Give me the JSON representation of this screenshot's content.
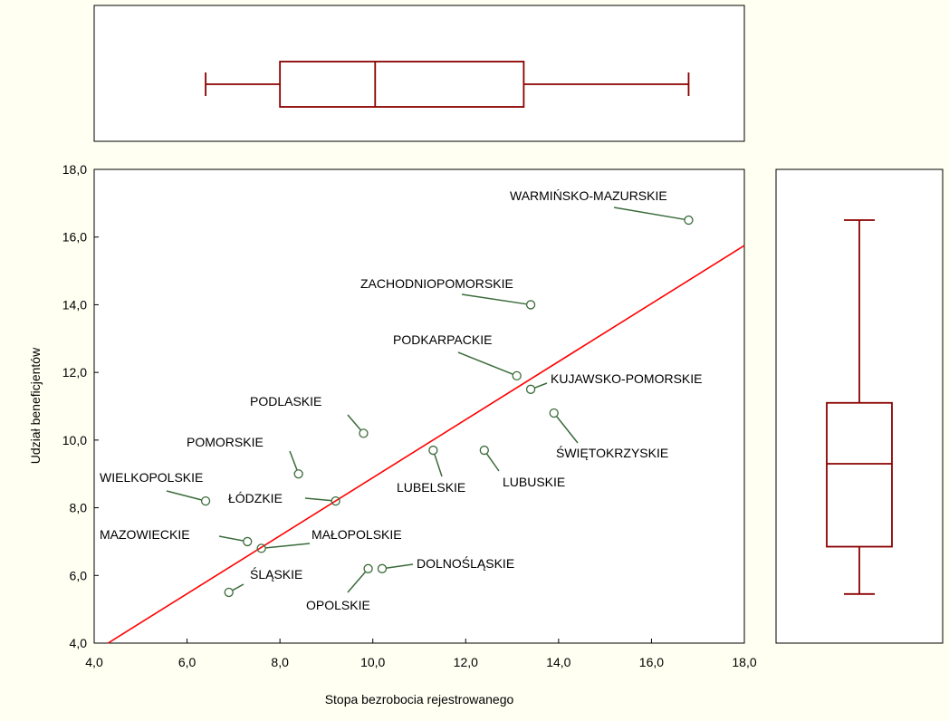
{
  "chart_data": {
    "type": "scatter",
    "background_color": "#fffff2",
    "point_color": "#3a6b3a",
    "regression_color": "#ff0000",
    "boxplot_color": "#8b0000",
    "xlabel": "Stopa bezrobocia rejestrowanego",
    "ylabel": "Udział beneficjentów",
    "xlim": [
      4.0,
      18.0
    ],
    "ylim": [
      4.0,
      18.0
    ],
    "x_ticks": [
      4,
      6,
      8,
      10,
      12,
      14,
      16,
      18
    ],
    "y_ticks": [
      4,
      6,
      8,
      10,
      12,
      14,
      16,
      18
    ],
    "x_tick_labels": [
      "4,0",
      "6,0",
      "8,0",
      "10,0",
      "12,0",
      "14,0",
      "16,0",
      "18,0"
    ],
    "y_tick_labels": [
      "4,0",
      "6,0",
      "8,0",
      "10,0",
      "12,0",
      "14,0",
      "16,0",
      "18,0"
    ],
    "grid": false,
    "points": [
      {
        "label": "WARMIŃSKO-MAZURSKIE",
        "x": 16.8,
        "y": 16.5
      },
      {
        "label": "ZACHODNIOPOMORSKIE",
        "x": 13.4,
        "y": 14.0
      },
      {
        "label": "PODKARPACKIE",
        "x": 13.1,
        "y": 11.9
      },
      {
        "label": "KUJAWSKO-POMORSKIE",
        "x": 13.4,
        "y": 11.5
      },
      {
        "label": "ŚWIĘTOKRZYSKIE",
        "x": 13.9,
        "y": 10.8
      },
      {
        "label": "PODLASKIE",
        "x": 9.8,
        "y": 10.2
      },
      {
        "label": "LUBELSKIE",
        "x": 11.3,
        "y": 9.7
      },
      {
        "label": "LUBUSKIE",
        "x": 12.4,
        "y": 9.7
      },
      {
        "label": "POMORSKIE",
        "x": 8.4,
        "y": 9.0
      },
      {
        "label": "WIELKOPOLSKIE",
        "x": 6.4,
        "y": 8.2
      },
      {
        "label": "ŁÓDZKIE",
        "x": 9.2,
        "y": 8.2
      },
      {
        "label": "MAZOWIECKIE",
        "x": 7.3,
        "y": 7.0
      },
      {
        "label": "MAŁOPOLSKIE",
        "x": 7.6,
        "y": 6.8
      },
      {
        "label": "DOLNOŚLĄSKIE",
        "x": 10.2,
        "y": 6.2
      },
      {
        "label": "OPOLSKIE",
        "x": 9.9,
        "y": 6.2
      },
      {
        "label": "ŚLĄSKIE",
        "x": 6.9,
        "y": 5.5
      }
    ],
    "regression_line": {
      "x": [
        4.3,
        18.0
      ],
      "y": [
        3.9,
        15.75
      ]
    },
    "boxplot_x": {
      "min": 6.4,
      "q1": 8.0,
      "median": 10.05,
      "q3": 13.25,
      "max": 16.8
    },
    "boxplot_y": {
      "min": 5.45,
      "q1": 6.85,
      "median": 9.3,
      "q3": 11.1,
      "max": 16.5
    }
  }
}
